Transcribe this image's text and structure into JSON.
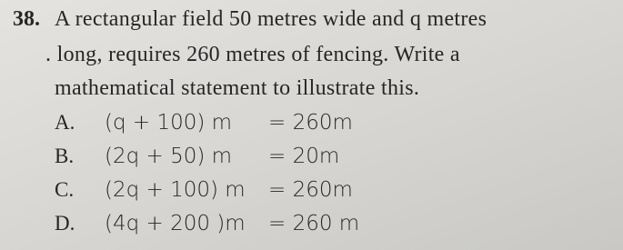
{
  "question": {
    "number": "38.",
    "lines": [
      "A rectangular field 50 metres wide and q metres",
      ". long, requires 260 metres of fencing. Write a",
      "mathematical statement to illustrate this."
    ],
    "options": [
      {
        "label": "A.",
        "lhs": "(q + 100) m",
        "rhs": "= 260m"
      },
      {
        "label": "B.",
        "lhs": "(2q + 50) m",
        "rhs": "= 20m"
      },
      {
        "label": "C.",
        "lhs": "(2q + 100) m",
        "rhs": "= 260m"
      },
      {
        "label": "D.",
        "lhs": "(4q + 200 )m",
        "rhs": "= 260 m"
      }
    ]
  }
}
